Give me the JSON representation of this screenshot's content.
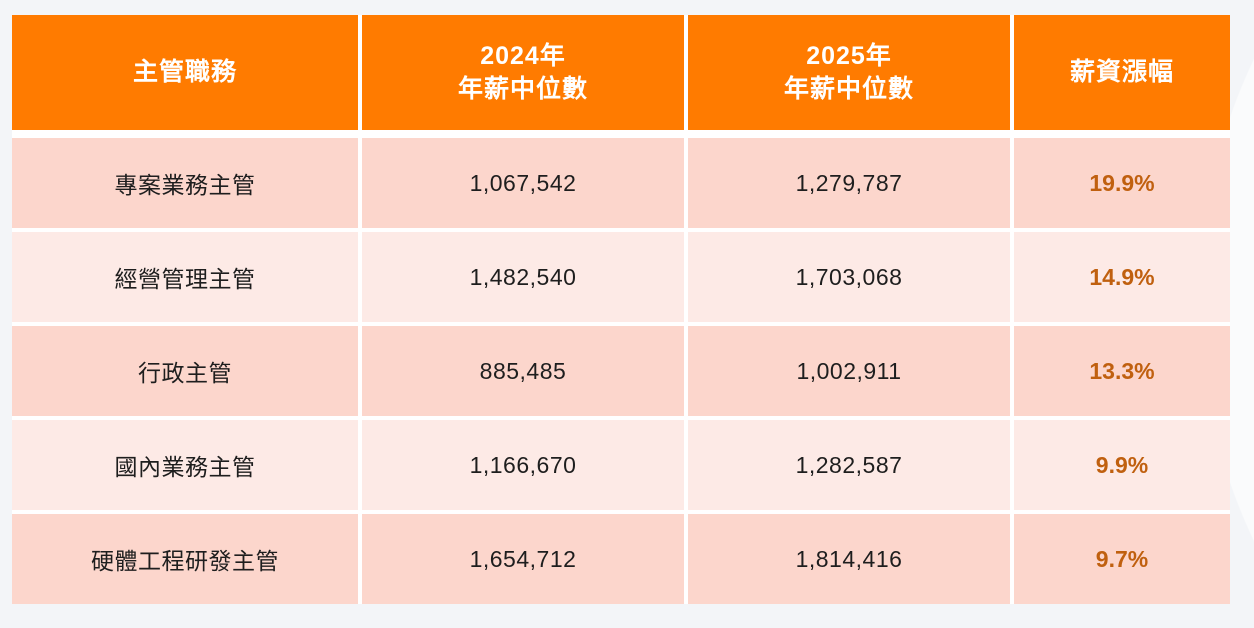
{
  "colors": {
    "page_background": "#F3F5F8",
    "header_background": "#FF7B00",
    "header_text": "#FFFFFF",
    "row_dark": "#FCD6CC",
    "row_light": "#FDEAE6",
    "body_text": "#1E1E1E",
    "raise_text": "#C0600F"
  },
  "chart_data": {
    "type": "table",
    "header": [
      [
        "主管職務"
      ],
      [
        "2024年",
        "年薪中位數"
      ],
      [
        "2025年",
        "年薪中位數"
      ],
      [
        "薪資漲幅"
      ]
    ],
    "rows": [
      {
        "role": "專案業務主管",
        "median_2024": "1,067,542",
        "median_2025": "1,279,787",
        "raise": "19.9%"
      },
      {
        "role": "經營管理主管",
        "median_2024": "1,482,540",
        "median_2025": "1,703,068",
        "raise": "14.9%"
      },
      {
        "role": "行政主管",
        "median_2024": "885,485",
        "median_2025": "1,002,911",
        "raise": "13.3%"
      },
      {
        "role": "國內業務主管",
        "median_2024": "1,166,670",
        "median_2025": "1,282,587",
        "raise": "9.9%"
      },
      {
        "role": "硬體工程研發主管",
        "median_2024": "1,654,712",
        "median_2025": "1,814,416",
        "raise": "9.7%"
      }
    ]
  }
}
